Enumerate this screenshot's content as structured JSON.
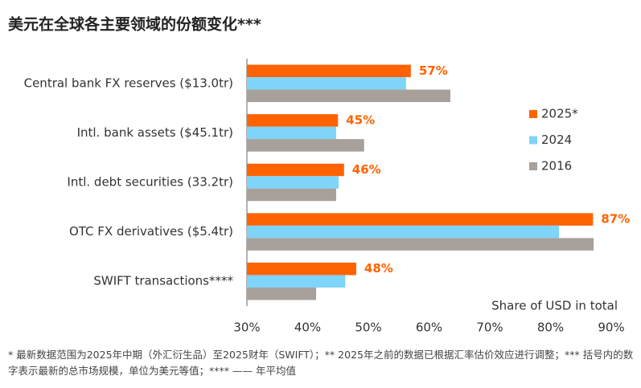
{
  "chart_data": {
    "type": "barh",
    "title": "美元在全球各主要领域的份额变化***",
    "categories": [
      "Central bank FX reserves ($13.0tr)",
      "Intl. bank assets ($45.1tr)",
      "Intl. debt securities (33.2tr)",
      "OTC FX derivatives ($5.4tr)",
      "SWIFT transactions****"
    ],
    "series": [
      {
        "name": "2025*",
        "color": "#ff6200",
        "values": [
          57,
          45,
          46,
          87,
          48
        ],
        "value_labels": [
          "57%",
          "45%",
          "46%",
          "87%",
          "48%"
        ]
      },
      {
        "name": "2024",
        "color": "#7fd4f9",
        "values": [
          56.2,
          44.7,
          45.1,
          81.4,
          46.2
        ]
      },
      {
        "name": "2016",
        "color": "#a8a09a",
        "values": [
          63.5,
          49.3,
          44.7,
          87.1,
          41.4
        ]
      }
    ],
    "xlim": [
      30,
      90
    ],
    "xticks": [
      {
        "value": 30,
        "label": "30%"
      },
      {
        "value": 40,
        "label": "40%"
      },
      {
        "value": 50,
        "label": "50%"
      },
      {
        "value": 60,
        "label": "60%"
      },
      {
        "value": 70,
        "label": "70%"
      },
      {
        "value": 80,
        "label": "80%"
      },
      {
        "value": 90,
        "label": "90%"
      }
    ],
    "xlabel": "Share of USD in total",
    "footnote": "* 最新数据范围为2025年中期（外汇衍生品）至2025财年（SWIFT）；** 2025年之前的数据已根据汇率估价效应进行调整；*** 括号内的数字表示最新的总市场规模，单位为美元等值；**** —— 年平均值"
  }
}
